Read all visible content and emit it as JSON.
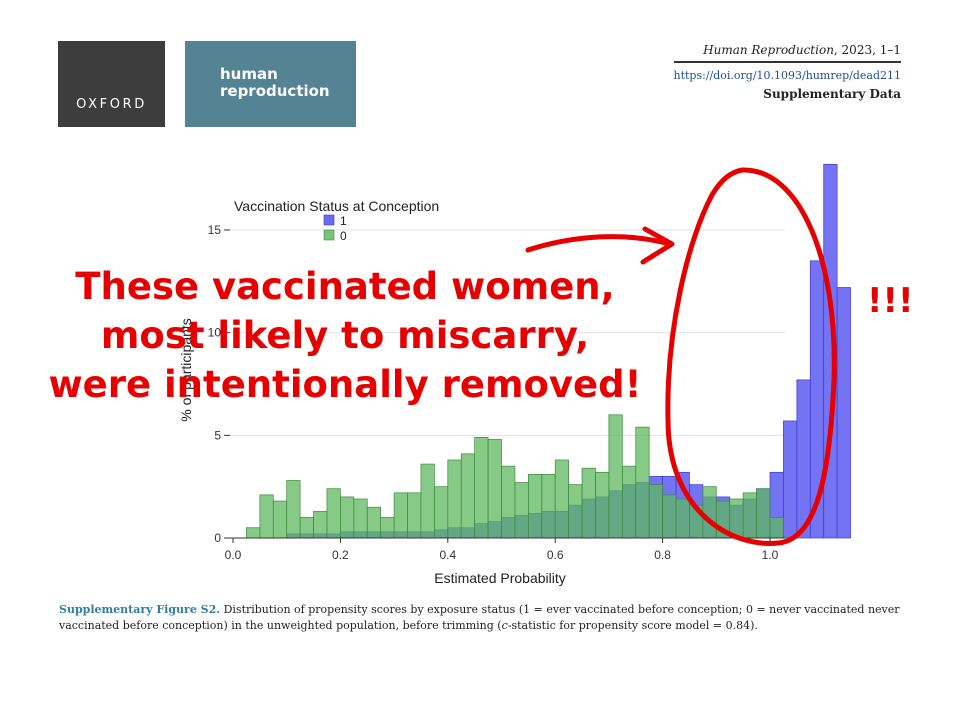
{
  "header": {
    "oxford_logo": "OXFORD",
    "journal_logo": [
      "human",
      "reproduction"
    ],
    "journal_name": "Human Reproduction",
    "journal_year": ", 2023, 1–1",
    "doi": "https://doi.org/10.1093/humrep/dead211",
    "supplementary": "Supplementary Data"
  },
  "chart_data": {
    "type": "bar",
    "subtype": "overlaid histogram",
    "legend_title": "Vaccination Status at Conception",
    "legend_placement": "top-left",
    "xlabel": "Estimated Probability",
    "ylabel": "% of participants",
    "xlim": [
      0,
      1.05
    ],
    "ylim": [
      0,
      17
    ],
    "x_ticks": [
      "0.0",
      "0.2",
      "0.4",
      "0.6",
      "0.8",
      "1.0"
    ],
    "y_ticks": [
      "0",
      "5",
      "10",
      "15"
    ],
    "grid": "horizontal",
    "bin_width": 0.025,
    "bin_start": 0.025,
    "series": [
      {
        "name": "1",
        "color": "#6b6bf2",
        "values": [
          0,
          0,
          0,
          0.2,
          0.2,
          0.2,
          0.2,
          0.3,
          0.3,
          0.3,
          0.3,
          0.3,
          0.3,
          0.3,
          0.4,
          0.5,
          0.5,
          0.7,
          0.8,
          1.0,
          1.1,
          1.2,
          1.3,
          1.3,
          1.6,
          1.9,
          2.0,
          2.3,
          2.6,
          2.7,
          3.0,
          3.0,
          3.2,
          2.6,
          2.0,
          2.0,
          1.6,
          1.9,
          2.4,
          3.2,
          5.7,
          7.7,
          13.5,
          18.2,
          12.2
        ]
      },
      {
        "name": "0",
        "color": "#79c279",
        "values": [
          0.5,
          2.1,
          1.8,
          2.8,
          1.0,
          1.3,
          2.4,
          2.0,
          1.9,
          1.5,
          1.0,
          2.2,
          2.2,
          3.6,
          2.5,
          3.8,
          4.1,
          4.9,
          4.8,
          3.5,
          2.7,
          3.1,
          3.1,
          3.8,
          2.6,
          3.4,
          3.2,
          6.0,
          3.5,
          5.4,
          2.6,
          2.1,
          1.9,
          1.6,
          2.5,
          1.8,
          1.9,
          2.2,
          2.4,
          1.0,
          0
        ]
      }
    ]
  },
  "annotations": {
    "overlay_lines": [
      "These vaccinated women,",
      "most likely to miscarry,",
      "were intentionally removed!"
    ],
    "exclamation": "!!!"
  },
  "caption": {
    "label": "Supplementary Figure S2.",
    "part1": " Distribution of propensity scores by exposure status (1 = ever vaccinated before conception; 0 = never vaccinated never vaccinated before conception) in the unweighted population, before trimming (",
    "c_italic": "c",
    "part2": "-statistic for propensity score model = 0.84)."
  },
  "colors": {
    "annotation_red": "#e60000",
    "oxford_bg": "#3d3d3d",
    "journal_bg": "#548394",
    "caption_label": "#2f7fa2"
  }
}
